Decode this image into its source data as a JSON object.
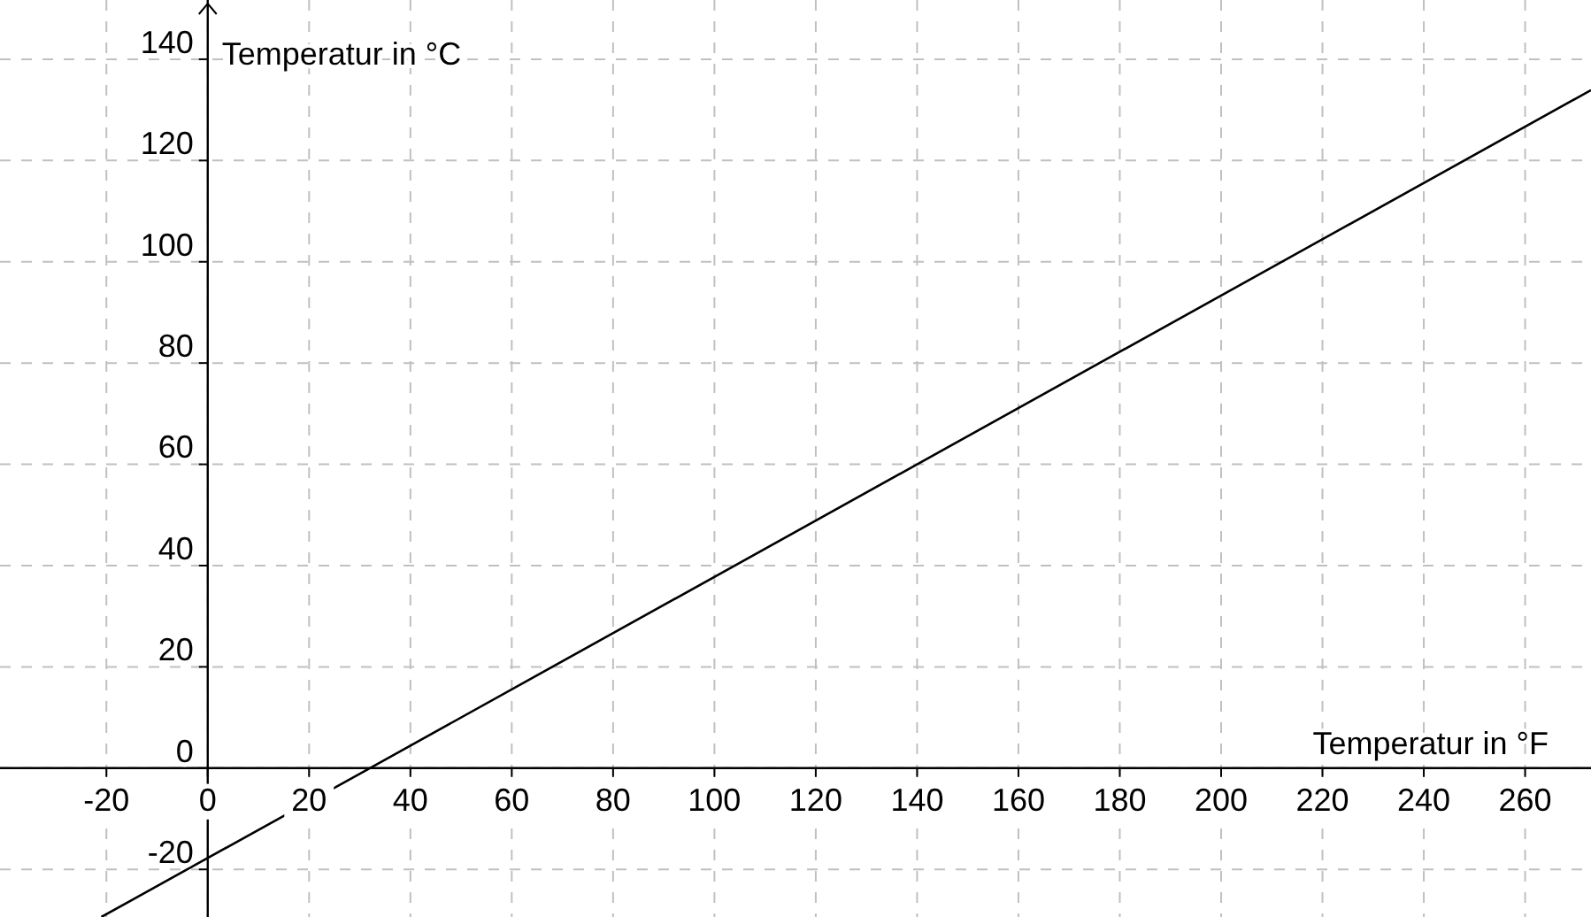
{
  "chart_data": {
    "type": "line",
    "xlabel": "Temperatur in °F",
    "ylabel": "Temperatur in °C",
    "x": [
      -21,
      32,
      140,
      273
    ],
    "series": [
      {
        "color": "#000000",
        "values": [
          -29.4,
          0,
          60,
          133.9
        ]
      }
    ],
    "xlim": [
      -41,
      273
    ],
    "ylim": [
      -29.4,
      151.7
    ],
    "xticks": [
      -20,
      0,
      20,
      40,
      60,
      80,
      100,
      120,
      140,
      160,
      180,
      200,
      220,
      240,
      260
    ],
    "yticks": [
      -20,
      0,
      20,
      40,
      60,
      80,
      100,
      120,
      140
    ],
    "grid": true,
    "marker": "none",
    "line_style": "solid"
  }
}
